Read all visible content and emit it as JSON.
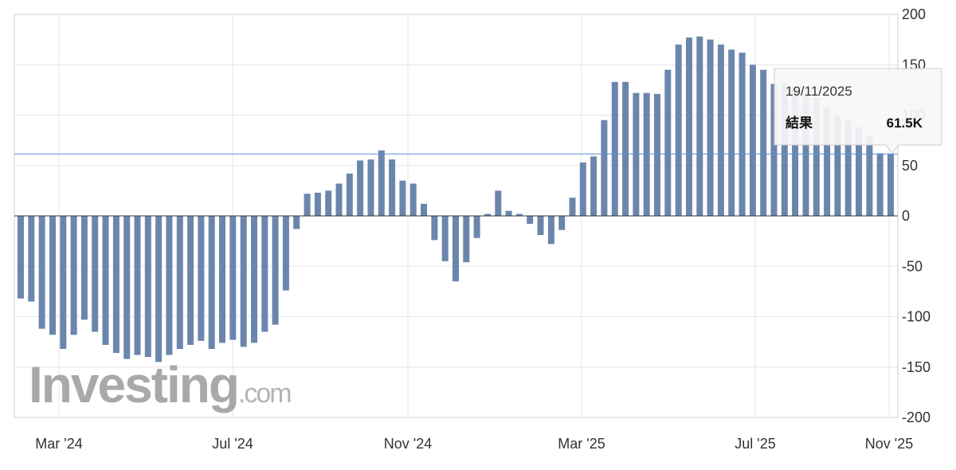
{
  "chart_data": {
    "type": "bar",
    "ylim": [
      -200,
      200
    ],
    "y_ticks": [
      200,
      150,
      100,
      50,
      0,
      -50,
      -100,
      -150,
      -200
    ],
    "y_tick_labels": [
      "200",
      "150",
      "100",
      "50",
      "0",
      "-50",
      "-100",
      "-150",
      "-200"
    ],
    "x_tick_labels": [
      "Mar '24",
      "Jul '24",
      "Nov '24",
      "Mar '25",
      "Jul '25",
      "Nov '25"
    ],
    "reference_line": 61.5,
    "grid": true,
    "values": [
      -82,
      -85,
      -112,
      -118,
      -132,
      -118,
      -103,
      -115,
      -128,
      -136,
      -142,
      -138,
      -140,
      -145,
      -138,
      -132,
      -128,
      -124,
      -132,
      -126,
      -123,
      -130,
      -126,
      -115,
      -108,
      -74,
      -13,
      22,
      23,
      25,
      32,
      42,
      55,
      56,
      65,
      56,
      35,
      32,
      12,
      -24,
      -45,
      -65,
      -46,
      -22,
      2,
      25,
      5,
      2,
      -8,
      -19,
      -28,
      -14,
      18,
      53,
      59,
      95,
      133,
      133,
      122,
      122,
      121,
      145,
      170,
      177,
      178,
      175,
      170,
      165,
      162,
      150,
      145,
      131,
      132,
      128,
      120,
      118,
      108,
      100,
      95,
      88,
      80,
      62,
      61.5
    ],
    "bar_color": "#6b86ad",
    "tooltip": {
      "date": "19/11/2025",
      "label": "結果",
      "value": "61.5K"
    }
  },
  "watermark": {
    "brand": "Investing",
    "suffix": ".com"
  }
}
